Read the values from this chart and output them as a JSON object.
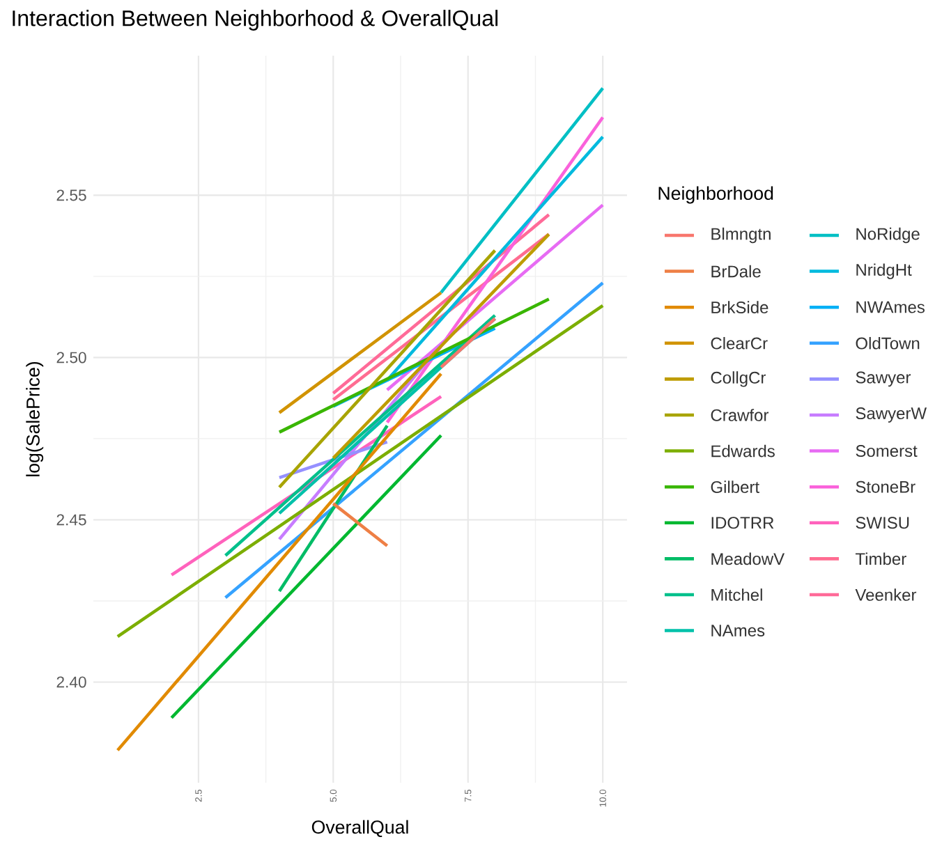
{
  "chart_data": {
    "type": "line",
    "title": "Interaction Between Neighborhood & OverallQual",
    "xlabel": "OverallQual",
    "ylabel": "log(SalePrice)",
    "legend_title": "Neighborhood",
    "legend": "right",
    "grid": true,
    "xlim": [
      0.55,
      10.45
    ],
    "ylim": [
      2.369,
      2.593
    ],
    "xticks": [
      {
        "value": 2.5,
        "label": "2.5"
      },
      {
        "value": 5,
        "label": "5.0"
      },
      {
        "value": 7.5,
        "label": "7.5"
      },
      {
        "value": 10,
        "label": "10.0"
      }
    ],
    "yticks": [
      {
        "value": 2.4,
        "label": "2.40"
      },
      {
        "value": 2.45,
        "label": "2.45"
      },
      {
        "value": 2.5,
        "label": "2.50"
      },
      {
        "value": 2.55,
        "label": "2.55"
      }
    ],
    "series": [
      {
        "name": "Blmngtn",
        "color": "#F8766D",
        "x": [
          7,
          8
        ],
        "values": [
          2.497,
          2.512
        ]
      },
      {
        "name": "BrDale",
        "color": "#EE7F45",
        "x": [
          5,
          6
        ],
        "values": [
          2.455,
          2.442
        ]
      },
      {
        "name": "BrkSide",
        "color": "#E18A00",
        "x": [
          1,
          7
        ],
        "values": [
          2.379,
          2.495
        ]
      },
      {
        "name": "ClearCr",
        "color": "#D19300",
        "x": [
          4,
          7
        ],
        "values": [
          2.483,
          2.52
        ]
      },
      {
        "name": "CollgCr",
        "color": "#BE9C00",
        "x": [
          5,
          9
        ],
        "values": [
          2.469,
          2.538
        ]
      },
      {
        "name": "Crawfor",
        "color": "#A8A400",
        "x": [
          4,
          8
        ],
        "values": [
          2.46,
          2.533
        ]
      },
      {
        "name": "Edwards",
        "color": "#7CAE00",
        "x": [
          1,
          10
        ],
        "values": [
          2.414,
          2.516
        ]
      },
      {
        "name": "Gilbert",
        "color": "#39B600",
        "x": [
          4,
          9
        ],
        "values": [
          2.477,
          2.518
        ]
      },
      {
        "name": "IDOTRR",
        "color": "#00B830",
        "x": [
          2,
          7
        ],
        "values": [
          2.389,
          2.476
        ]
      },
      {
        "name": "MeadowV",
        "color": "#00BC66",
        "x": [
          4,
          6
        ],
        "values": [
          2.428,
          2.479
        ]
      },
      {
        "name": "Mitchel",
        "color": "#00C08B",
        "x": [
          3,
          8
        ],
        "values": [
          2.439,
          2.513
        ]
      },
      {
        "name": "NAmes",
        "color": "#00C1AA",
        "x": [
          4,
          8
        ],
        "values": [
          2.452,
          2.512
        ]
      },
      {
        "name": "NoRidge",
        "color": "#00BFC4",
        "x": [
          7,
          10
        ],
        "values": [
          2.52,
          2.583
        ]
      },
      {
        "name": "NridgHt",
        "color": "#00BADE",
        "x": [
          6,
          10
        ],
        "values": [
          2.493,
          2.568
        ]
      },
      {
        "name": "NWAmes",
        "color": "#00B0F6",
        "x": [
          5,
          8
        ],
        "values": [
          2.485,
          2.509
        ]
      },
      {
        "name": "OldTown",
        "color": "#35A2FF",
        "x": [
          3,
          10
        ],
        "values": [
          2.426,
          2.523
        ]
      },
      {
        "name": "Sawyer",
        "color": "#9590FF",
        "x": [
          4,
          6
        ],
        "values": [
          2.463,
          2.474
        ]
      },
      {
        "name": "SawyerW",
        "color": "#C77CFF",
        "x": [
          4,
          7
        ],
        "values": [
          2.444,
          2.504
        ]
      },
      {
        "name": "Somerst",
        "color": "#E76BF3",
        "x": [
          6,
          10
        ],
        "values": [
          2.49,
          2.547
        ]
      },
      {
        "name": "StoneBr",
        "color": "#FA62DB",
        "x": [
          6,
          10
        ],
        "values": [
          2.48,
          2.574
        ]
      },
      {
        "name": "SWISU",
        "color": "#FF62BC",
        "x": [
          2,
          7
        ],
        "values": [
          2.433,
          2.488
        ]
      },
      {
        "name": "Timber",
        "color": "#FF6C91",
        "x": [
          5,
          9
        ],
        "values": [
          2.487,
          2.538
        ]
      },
      {
        "name": "Veenker",
        "color": "#FF6A98",
        "x": [
          5,
          9
        ],
        "values": [
          2.489,
          2.544
        ]
      }
    ]
  }
}
